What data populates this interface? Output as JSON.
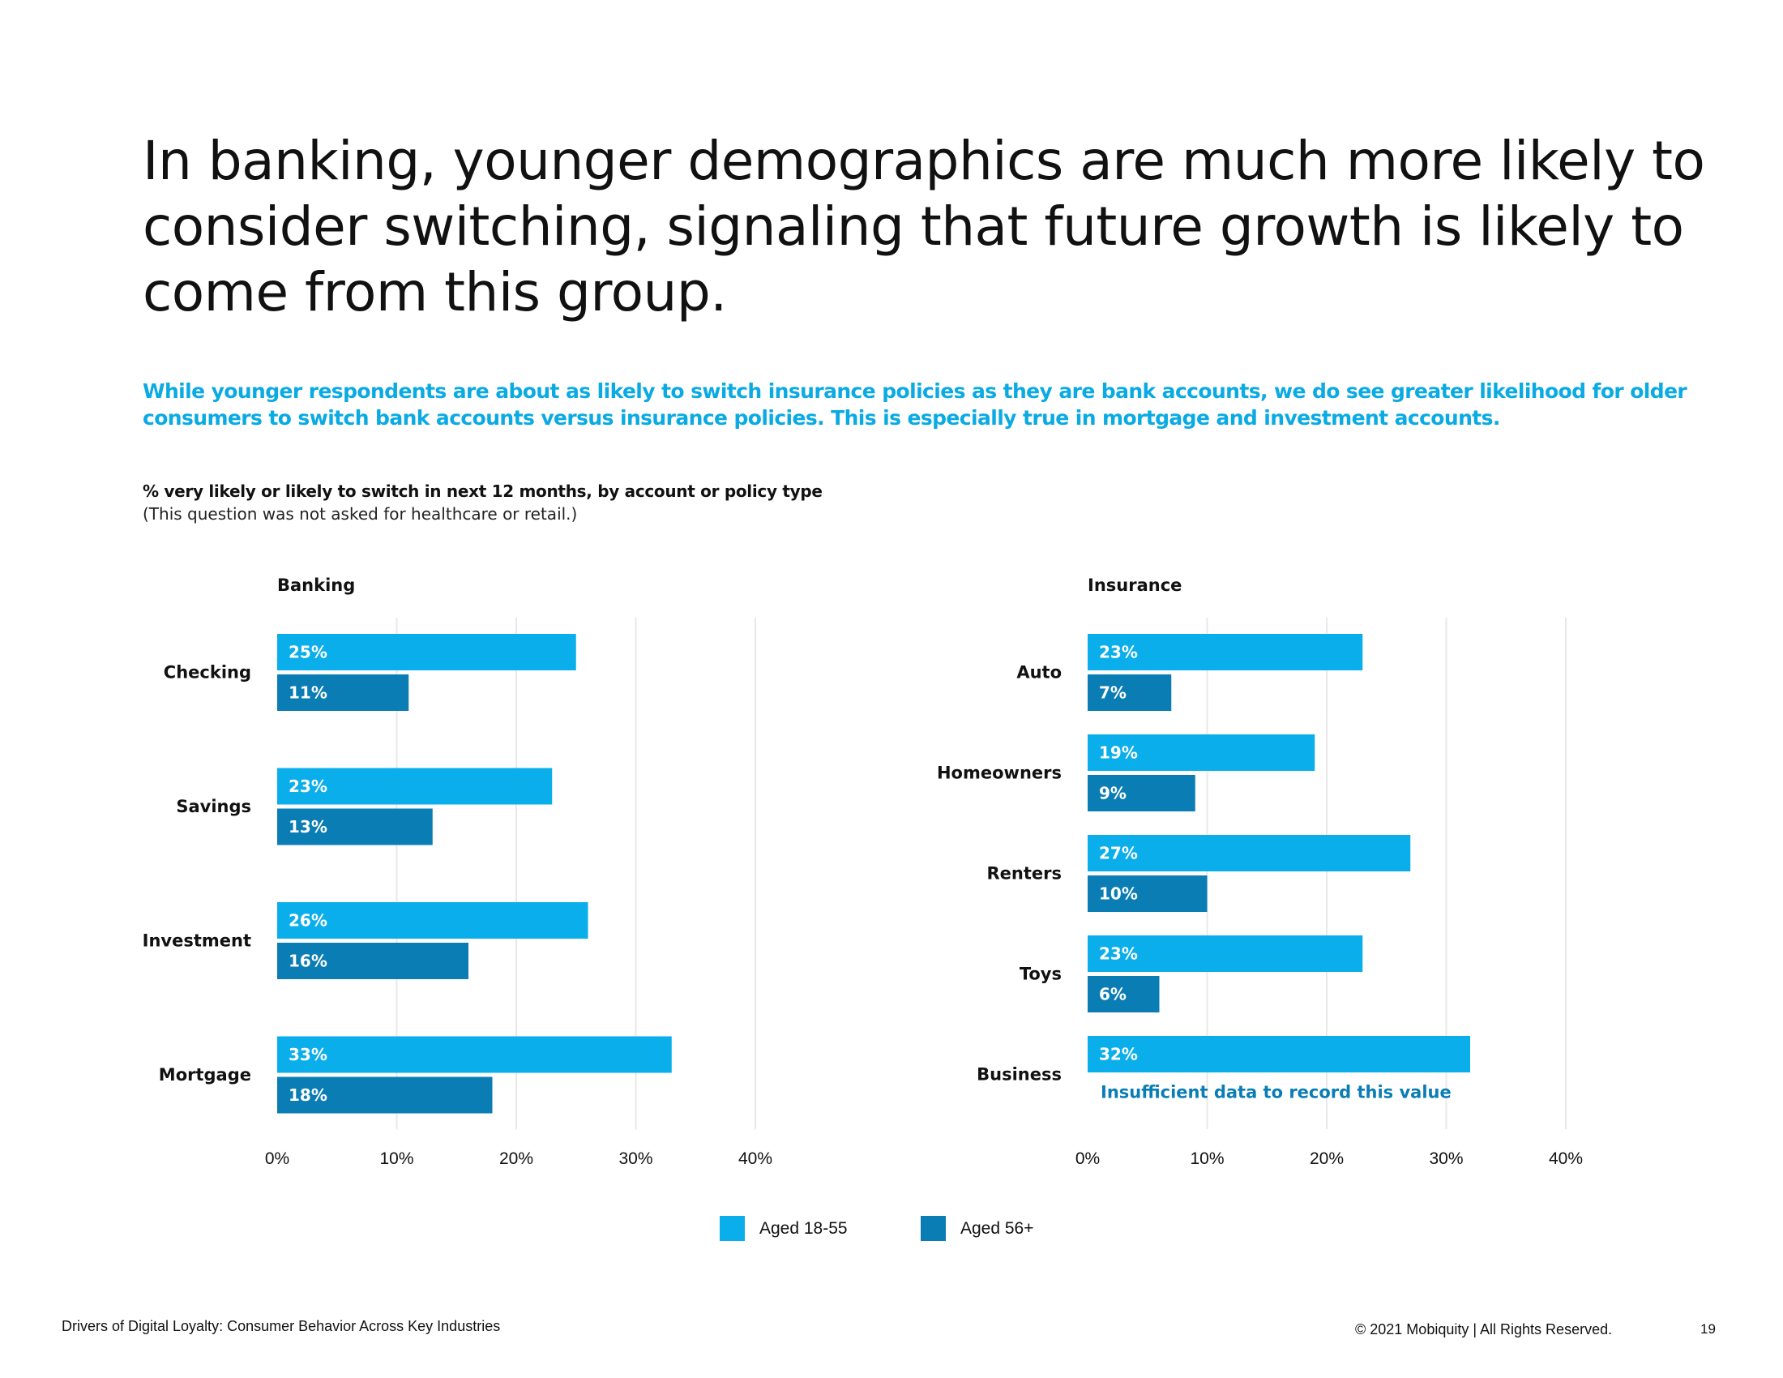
{
  "headline": "In banking, younger demographics are much more likely to consider switching, signaling that future growth is likely to come from this group.",
  "subhead": "While younger respondents are about as likely to switch insurance policies as they are bank accounts, we do see greater likelihood for older consumers to switch bank accounts versus insurance policies. This is especially true in mortgage and investment accounts.",
  "chart_title": "% very likely or likely to switch in next 12 months, by account or policy type",
  "chart_note": "(This question was not asked for healthcare or retail.)",
  "colors": {
    "young": "#0aaeea",
    "old": "#0a7db5",
    "note": "#0a7db5",
    "grid": "#e8e8e8"
  },
  "legend": [
    {
      "label": "Aged 18-55",
      "color": "#0aaeea"
    },
    {
      "label": "Aged 56+",
      "color": "#0a7db5"
    }
  ],
  "footer": {
    "left": "Drivers of Digital Loyalty: Consumer Behavior Across Key Industries",
    "copyright": "© 2021 Mobiquity  |  All Rights Reserved.",
    "page_number": "19"
  },
  "chart_data": [
    {
      "type": "bar",
      "orientation": "horizontal",
      "title": "Banking",
      "categories": [
        "Checking",
        "Savings",
        "Investment",
        "Mortgage"
      ],
      "series": [
        {
          "name": "Aged 18-55",
          "values": [
            25,
            23,
            26,
            33
          ],
          "labels": [
            "25%",
            "23%",
            "26%",
            "33%"
          ]
        },
        {
          "name": "Aged 56+",
          "values": [
            11,
            13,
            16,
            18
          ],
          "labels": [
            "11%",
            "13%",
            "16%",
            "18%"
          ]
        }
      ],
      "xlim": [
        0,
        40
      ],
      "xticks": [
        "0%",
        "10%",
        "20%",
        "30%",
        "40%"
      ],
      "notes": []
    },
    {
      "type": "bar",
      "orientation": "horizontal",
      "title": "Insurance",
      "categories": [
        "Auto",
        "Homeowners",
        "Renters",
        "Toys",
        "Business"
      ],
      "series": [
        {
          "name": "Aged 18-55",
          "values": [
            23,
            19,
            27,
            23,
            32
          ],
          "labels": [
            "23%",
            "19%",
            "27%",
            "23%",
            "32%"
          ]
        },
        {
          "name": "Aged 56+",
          "values": [
            7,
            9,
            10,
            6,
            null
          ],
          "labels": [
            "7%",
            "9%",
            "10%",
            "6%",
            null
          ]
        }
      ],
      "xlim": [
        0,
        40
      ],
      "xticks": [
        "0%",
        "10%",
        "20%",
        "30%",
        "40%"
      ],
      "notes": [
        {
          "category": "Business",
          "series": "Aged 56+",
          "text": "Insufficient data to record this value"
        }
      ]
    }
  ]
}
